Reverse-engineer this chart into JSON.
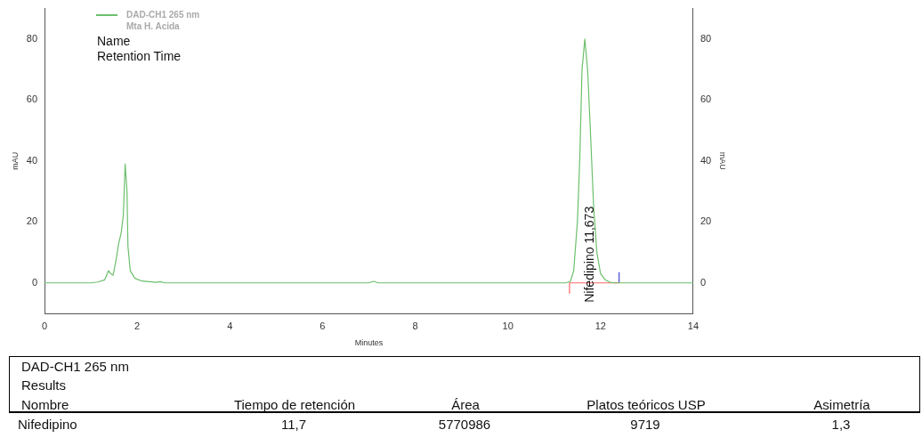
{
  "chart_data": {
    "type": "line",
    "xlabel": "Minutes",
    "ylabel": "mAU",
    "y2label": "mAU",
    "legend": "top left",
    "legend_title": "Mta H. Acida",
    "marker": "none",
    "grid": false,
    "xlim": [
      0,
      14
    ],
    "xticks": [
      0,
      2,
      4,
      6,
      8,
      10,
      12,
      14
    ],
    "ylim": [
      -10,
      90
    ],
    "yticks": [
      0,
      20,
      40,
      60,
      80
    ],
    "y2lim": [
      -10,
      90
    ],
    "y2ticks": [
      0,
      20,
      40,
      60,
      80
    ],
    "series": [
      {
        "name": "DAD-CH1  265 nm",
        "color": "#6cbf6c",
        "x": [
          0,
          1.0,
          1.15,
          1.3,
          1.38,
          1.43,
          1.48,
          1.55,
          1.6,
          1.65,
          1.7,
          1.74,
          1.78,
          1.8,
          1.85,
          1.95,
          2.1,
          2.4,
          2.5,
          2.6,
          7.0,
          7.1,
          7.2,
          11.25,
          11.35,
          11.42,
          11.5,
          11.55,
          11.6,
          11.66,
          11.72,
          11.78,
          11.85,
          11.92,
          12.0,
          12.1,
          12.2,
          12.3,
          14
        ],
        "values": [
          0,
          0,
          0.3,
          1,
          4,
          3,
          2.5,
          8,
          13,
          16,
          22,
          39,
          30,
          12,
          4,
          1.5,
          0.6,
          0.2,
          0.4,
          0,
          0,
          0.5,
          0,
          0,
          0.5,
          4,
          20,
          40,
          70,
          80,
          70,
          50,
          25,
          10,
          3,
          1,
          0.2,
          0,
          0
        ]
      },
      {
        "type": "line",
        "color": "#ff6666",
        "x": [
          11.33,
          11.33,
          12.4
        ],
        "values": [
          -3.5,
          0,
          0
        ]
      },
      {
        "type": "line",
        "color": "#4444dd",
        "x": [
          12.4,
          12.4
        ],
        "values": [
          0,
          3.5
        ]
      }
    ],
    "annotations": [
      "Name",
      "Retention Time",
      {
        "text": "Nifedipino 11,673",
        "x": 11.673,
        "y": 0
      },
      "DAD-CH1  265 nm",
      "Results",
      "Nombre",
      "Tiempo de retención",
      "Área",
      "Platos teóricos USP",
      "Asimetría",
      "Nifedipino",
      "11,7",
      "5770986",
      "9719",
      "1,3"
    ]
  }
}
